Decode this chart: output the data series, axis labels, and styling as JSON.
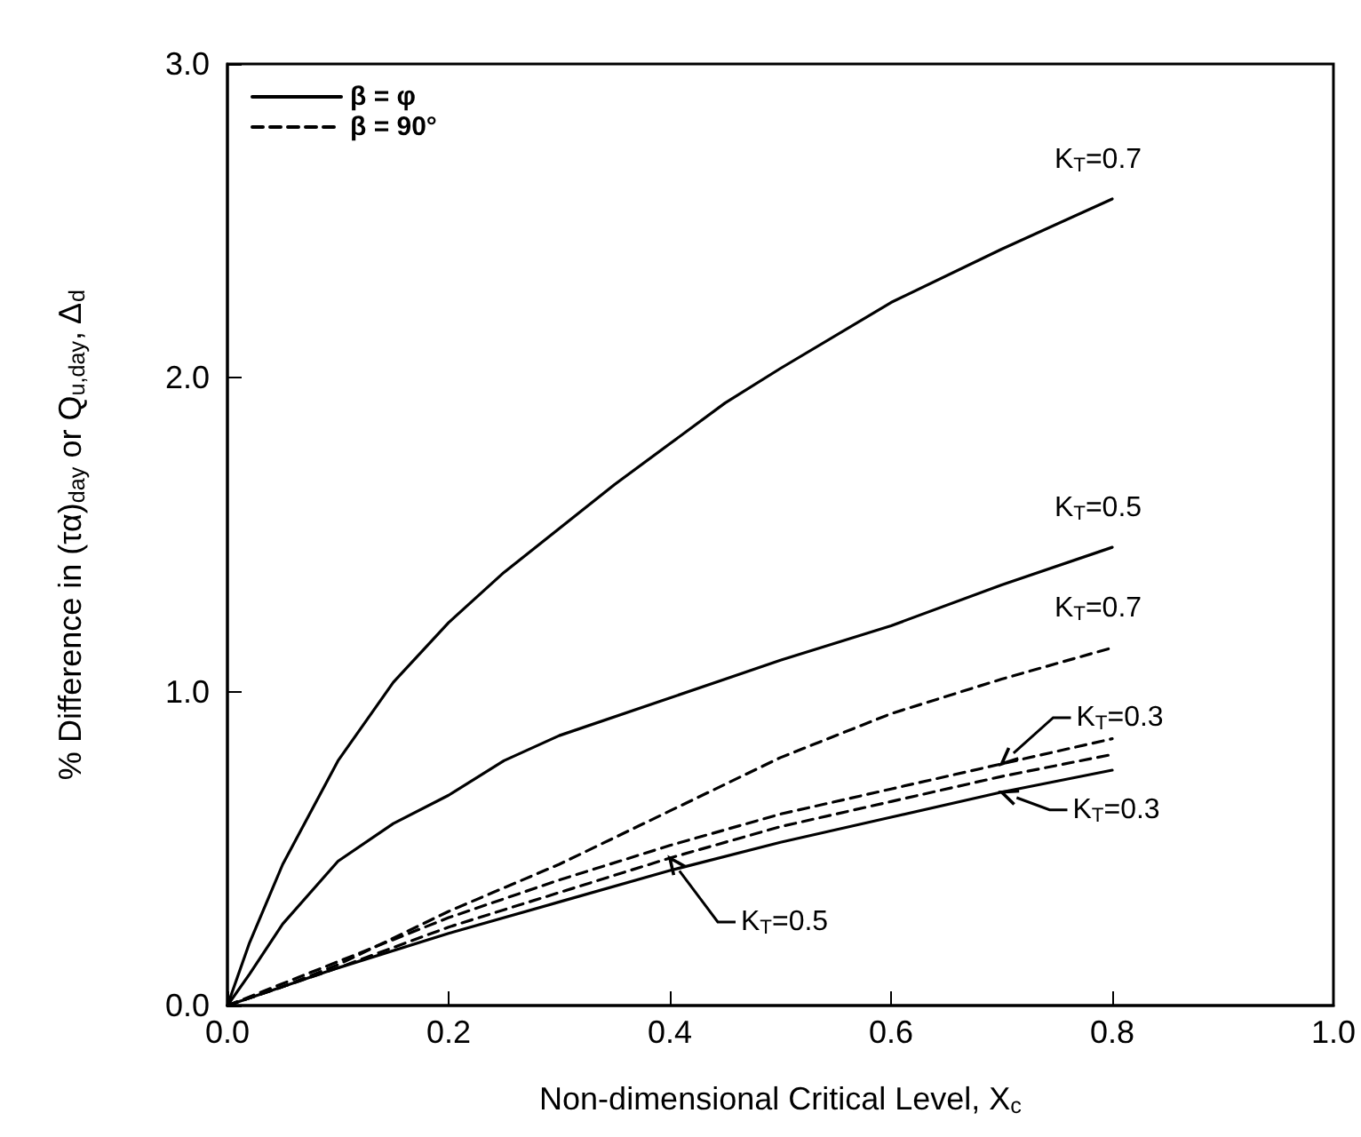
{
  "chart_data": {
    "type": "line",
    "xlabel": "Non-dimensional Critical Level, X$_{c}$",
    "ylabel": "% Difference in (τα)$_{day}$ or Q$_{u,day}$, Δ$_{d}$",
    "xlim": [
      0,
      1.0
    ],
    "ylim": [
      0,
      3.0
    ],
    "xticks": [
      {
        "value": 0,
        "label": "0.0"
      },
      {
        "value": 0.2,
        "label": "0.2"
      },
      {
        "value": 0.4,
        "label": "0.4"
      },
      {
        "value": 0.6,
        "label": "0.6"
      },
      {
        "value": 0.8,
        "label": "0.8"
      },
      {
        "value": 1.0,
        "label": "1.0"
      }
    ],
    "yticks": [
      {
        "value": 0,
        "label": "0.0"
      },
      {
        "value": 1.0,
        "label": "1.0"
      },
      {
        "value": 2.0,
        "label": "2.0"
      },
      {
        "value": 3.0,
        "label": "3.0"
      }
    ],
    "grid": false,
    "legend": "top left",
    "marker": "none",
    "series": [
      {
        "name": "β = φ",
        "color": "#000000",
        "line_style": "solid",
        "x": [
          0,
          0.02,
          0.05,
          0.1,
          0.15,
          0.2,
          0.25,
          0.3,
          0.35,
          0.4,
          0.45,
          0.5,
          0.6,
          0.7,
          0.8
        ],
        "values": [
          0,
          0.2,
          0.45,
          0.78,
          1.03,
          1.22,
          1.38,
          1.52,
          1.66,
          1.79,
          1.92,
          2.03,
          2.24,
          2.41,
          2.57
        ]
      },
      {
        "color": "#000000",
        "line_style": "solid",
        "x": [
          0,
          0.02,
          0.05,
          0.1,
          0.15,
          0.2,
          0.25,
          0.3,
          0.4,
          0.5,
          0.6,
          0.7,
          0.8
        ],
        "values": [
          0,
          0.1,
          0.26,
          0.46,
          0.58,
          0.67,
          0.78,
          0.86,
          0.98,
          1.1,
          1.21,
          1.34,
          1.46
        ]
      },
      {
        "color": "#000000",
        "line_style": "solid",
        "x": [
          0,
          0.05,
          0.1,
          0.2,
          0.3,
          0.4,
          0.5,
          0.6,
          0.7,
          0.8
        ],
        "values": [
          0,
          0.06,
          0.12,
          0.23,
          0.33,
          0.43,
          0.52,
          0.6,
          0.68,
          0.75
        ]
      },
      {
        "name": "β = 90°",
        "color": "#000000",
        "line_style": "dashed",
        "x": [
          0,
          0.05,
          0.1,
          0.2,
          0.3,
          0.4,
          0.5,
          0.6,
          0.7,
          0.8
        ],
        "values": [
          0,
          0.06,
          0.13,
          0.3,
          0.45,
          0.62,
          0.79,
          0.93,
          1.04,
          1.14
        ]
      },
      {
        "color": "#000000",
        "line_style": "dashed",
        "x": [
          0,
          0.05,
          0.1,
          0.2,
          0.3,
          0.4,
          0.5,
          0.6,
          0.7,
          0.8
        ],
        "values": [
          0,
          0.07,
          0.14,
          0.28,
          0.4,
          0.51,
          0.61,
          0.69,
          0.77,
          0.85
        ]
      },
      {
        "color": "#000000",
        "line_style": "dashed",
        "x": [
          0,
          0.05,
          0.1,
          0.2,
          0.3,
          0.4,
          0.5,
          0.6,
          0.7,
          0.8
        ],
        "values": [
          0,
          0.06,
          0.12,
          0.25,
          0.36,
          0.47,
          0.57,
          0.65,
          0.73,
          0.8
        ]
      }
    ],
    "annotations": [
      {
        "text": "K$_{T}$=0.7",
        "x": 0.8,
        "y": 2.57
      },
      {
        "text": "K$_{T}$=0.5",
        "x": 0.8,
        "y": 1.46
      },
      {
        "text": "K$_{T}$=0.7",
        "x": 0.8,
        "y": 1.14
      },
      {
        "text": "K$_{T}$=0.3",
        "x": 0.7,
        "y": 0.77
      },
      {
        "text": "K$_{T}$=0.3",
        "x": 0.7,
        "y": 0.68
      },
      {
        "text": "K$_{T}$=0.5",
        "x": 0.4,
        "y": 0.47
      }
    ]
  }
}
